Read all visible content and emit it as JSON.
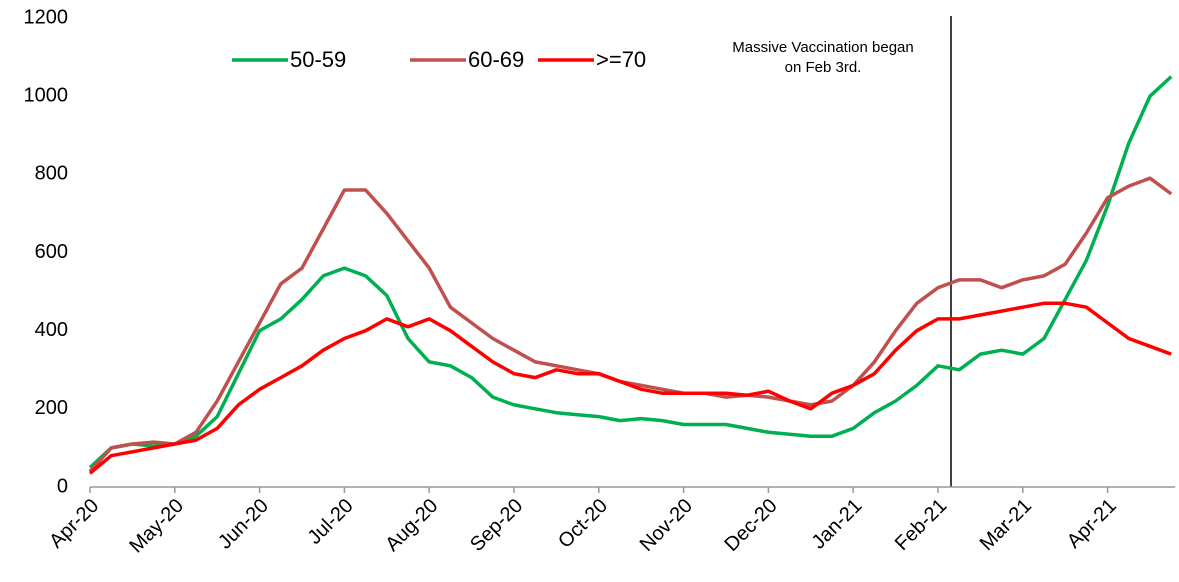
{
  "chart_data": {
    "type": "line",
    "categories": [
      "Apr-20",
      null,
      null,
      null,
      "May-20",
      null,
      null,
      null,
      "Jun-20",
      null,
      null,
      null,
      "Jul-20",
      null,
      null,
      null,
      "Aug-20",
      null,
      null,
      null,
      "Sep-20",
      null,
      null,
      null,
      "Oct-20",
      null,
      null,
      null,
      "Nov-20",
      null,
      null,
      null,
      "Dec-20",
      null,
      null,
      null,
      "Jan-21",
      null,
      null,
      null,
      "Feb-21",
      null,
      null,
      null,
      "Mar-21",
      null,
      null,
      null,
      "Apr-21",
      null,
      null,
      null
    ],
    "series": [
      {
        "name": "50-59",
        "color": "#00b050",
        "values": [
          50,
          100,
          110,
          105,
          110,
          130,
          180,
          290,
          400,
          430,
          480,
          540,
          560,
          540,
          490,
          380,
          320,
          310,
          280,
          230,
          210,
          200,
          190,
          185,
          180,
          170,
          175,
          170,
          160,
          160,
          160,
          150,
          140,
          135,
          130,
          130,
          150,
          190,
          220,
          260,
          310,
          300,
          340,
          350,
          340,
          380,
          480,
          580,
          720,
          880,
          1000,
          1050
        ]
      },
      {
        "name": "60-69",
        "color": "#c0504d",
        "values": [
          40,
          100,
          110,
          115,
          110,
          140,
          220,
          320,
          420,
          520,
          560,
          660,
          760,
          760,
          700,
          630,
          560,
          460,
          420,
          380,
          350,
          320,
          310,
          300,
          290,
          270,
          260,
          250,
          240,
          240,
          230,
          235,
          230,
          220,
          210,
          220,
          260,
          320,
          400,
          470,
          510,
          530,
          530,
          510,
          530,
          540,
          570,
          650,
          740,
          770,
          790,
          750
        ]
      },
      {
        "name": ">=70",
        "color": "#ff0000",
        "values": [
          35,
          80,
          90,
          100,
          110,
          120,
          150,
          210,
          250,
          280,
          310,
          350,
          380,
          400,
          430,
          410,
          430,
          400,
          360,
          320,
          290,
          280,
          300,
          290,
          290,
          270,
          250,
          240,
          240,
          240,
          240,
          235,
          245,
          220,
          200,
          240,
          260,
          290,
          350,
          400,
          430,
          430,
          440,
          450,
          460,
          470,
          470,
          460,
          420,
          380,
          360,
          340
        ]
      }
    ],
    "ylim": [
      0,
      1200
    ],
    "yticks": [
      0,
      200,
      400,
      600,
      800,
      1000,
      1200
    ],
    "annotation": [
      "Massive Vaccination began",
      "on Feb 3rd."
    ],
    "legend": "top"
  }
}
